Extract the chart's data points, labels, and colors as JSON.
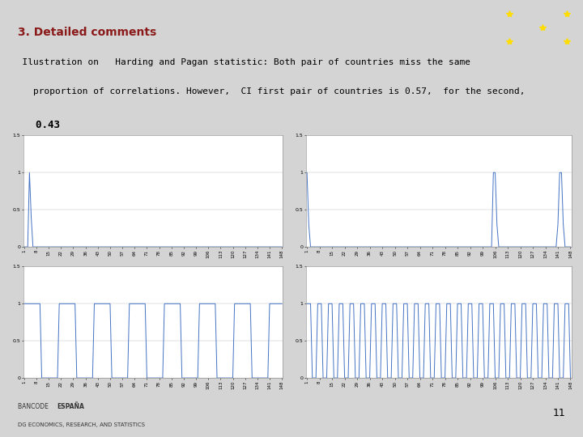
{
  "title": "3. Detailed comments",
  "line1": "  Ilustration on   Harding and Pagan statistic: Both pair of countries miss the same",
  "line2": "    proportion of correlations. However,  CI first pair of countries is 0.57,  for the second,",
  "line3": "    0.43",
  "background_color": "#d4d4d4",
  "plot_bg": "#ffffff",
  "title_color": "#8B1A1A",
  "text_color": "#000000",
  "page_num": "11",
  "n_points": 148,
  "ylim": [
    0.0,
    1.5
  ],
  "yticks": [
    0.0,
    0.5,
    1.0,
    1.5
  ],
  "ytick_labels": [
    "0",
    "0.5",
    "1",
    "1.5"
  ],
  "line_color": "#4472c4",
  "line_width": 0.7,
  "tick_fontsize": 4.5,
  "axis_label_fontsize": 5,
  "title_fontsize": 10,
  "text_fontsize": 8,
  "flag_color": "#cc2200",
  "footer_main": "BANCODE",
  "footer_bold": "ESPAÑA",
  "footer_sub": "DG ECONOMICS, RESEARCH, AND STATISTICS"
}
